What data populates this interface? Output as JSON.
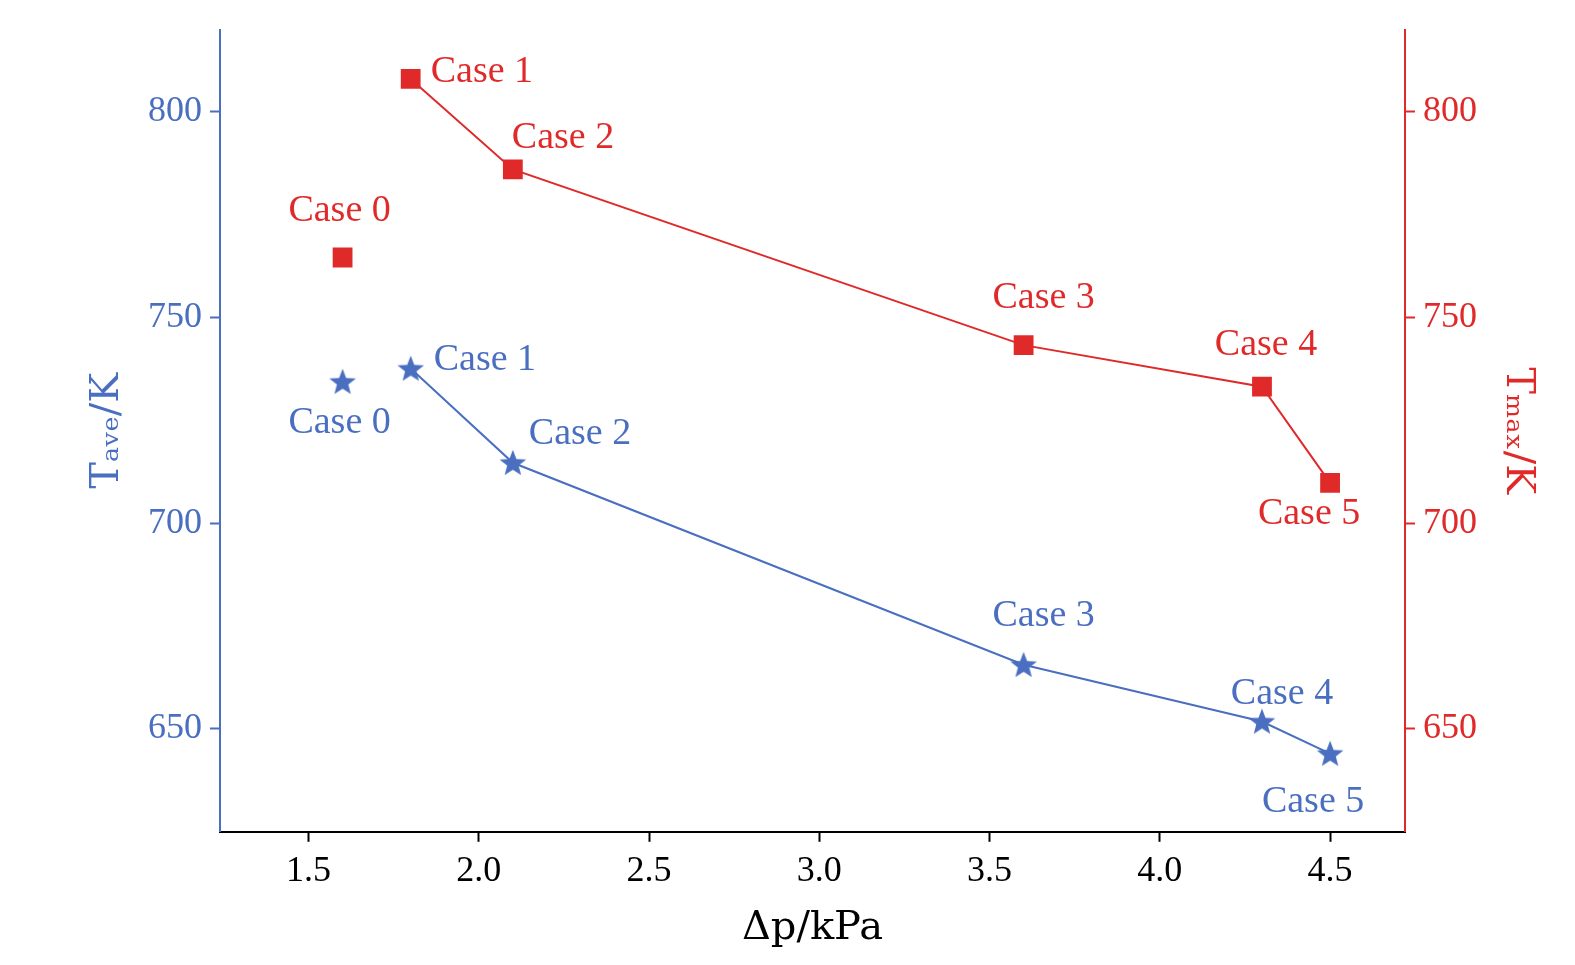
{
  "chart_data": {
    "type": "scatter",
    "xlabel": "Δp/kPa",
    "ylabel": "Tₐᵥₑ/K",
    "y2label": "Tₘₐₓ/K",
    "xlim": [
      1.24,
      4.72
    ],
    "xticks": [
      1.5,
      {
        "value": 2,
        "label": "2.0"
      },
      2.5,
      {
        "value": 3,
        "label": "3.0"
      },
      3.5,
      {
        "value": 4,
        "label": "4.0"
      },
      4.5
    ],
    "ylim": [
      625,
      820
    ],
    "yticks": [
      650,
      700,
      750,
      800
    ],
    "y2lim": [
      625,
      820
    ],
    "y2ticks": [
      650,
      700,
      750,
      800
    ],
    "grid": false,
    "series": [
      {
        "color": "#4a6fc1",
        "marker": "star",
        "line_style": "none",
        "axis": "y",
        "x": [
          1.6
        ],
        "values": [
          734.4
        ],
        "labels": [
          "Case 0"
        ]
      },
      {
        "color": "#4a6fc1",
        "marker": "star",
        "line_style": "solid",
        "axis": "y",
        "x": [
          1.8,
          2.1,
          3.6,
          4.3,
          4.5
        ],
        "values": [
          737.6,
          714.7,
          665.6,
          651.8,
          644.0
        ],
        "labels": [
          "Case 1",
          "Case 2",
          "Case 3",
          "Case 4",
          "Case 5"
        ]
      },
      {
        "color": "#e02a2a",
        "marker": "square",
        "line_style": "none",
        "axis": "y2",
        "x": [
          1.6
        ],
        "values": [
          764.6
        ],
        "labels": [
          "Case 0"
        ]
      },
      {
        "color": "#e02a2a",
        "marker": "square",
        "line_style": "solid",
        "axis": "y2",
        "x": [
          1.8,
          2.1,
          3.6,
          4.3,
          4.5
        ],
        "values": [
          808.0,
          786.0,
          743.3,
          733.2,
          709.8
        ],
        "labels": [
          "Case 1",
          "Case 2",
          "Case 3",
          "Case 4",
          "Case 5"
        ]
      }
    ]
  }
}
